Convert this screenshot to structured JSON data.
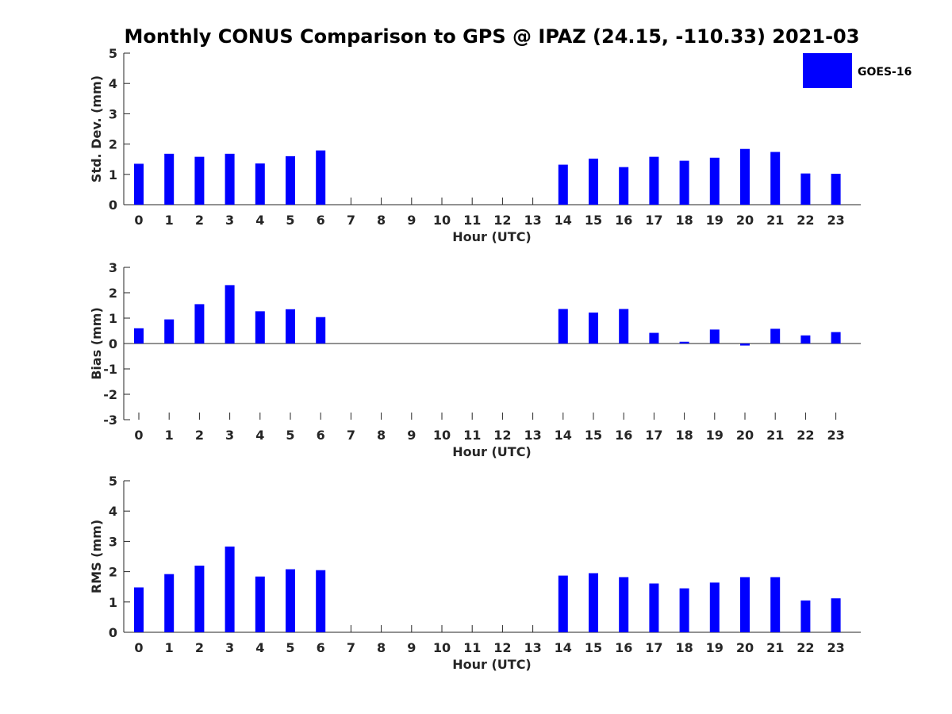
{
  "title": "Monthly CONUS Comparison to GPS @ IPAZ (24.15, -110.33) 2021-03",
  "legend": {
    "label": "GOES-16",
    "color": "#0000ff"
  },
  "bar_color": "#0000ff",
  "chart_data": [
    {
      "type": "bar",
      "xlabel": "Hour (UTC)",
      "ylabel": "Std. Dev. (mm)",
      "ylim": [
        0,
        5
      ],
      "yticks": [
        0,
        1,
        2,
        3,
        4,
        5
      ],
      "categories": [
        "0",
        "1",
        "2",
        "3",
        "4",
        "5",
        "6",
        "7",
        "8",
        "9",
        "10",
        "11",
        "12",
        "13",
        "14",
        "15",
        "16",
        "17",
        "18",
        "19",
        "20",
        "21",
        "22",
        "23"
      ],
      "series": [
        {
          "name": "GOES-16",
          "values": [
            1.35,
            1.68,
            1.58,
            1.68,
            1.36,
            1.6,
            1.79,
            null,
            null,
            null,
            null,
            null,
            null,
            null,
            1.32,
            1.52,
            1.24,
            1.58,
            1.45,
            1.55,
            1.84,
            1.74,
            1.03,
            1.02
          ]
        }
      ]
    },
    {
      "type": "bar",
      "xlabel": "Hour (UTC)",
      "ylabel": "Bias (mm)",
      "ylim": [
        -3,
        3
      ],
      "yticks": [
        -3,
        -2,
        -1,
        0,
        1,
        2,
        3
      ],
      "categories": [
        "0",
        "1",
        "2",
        "3",
        "4",
        "5",
        "6",
        "7",
        "8",
        "9",
        "10",
        "11",
        "12",
        "13",
        "14",
        "15",
        "16",
        "17",
        "18",
        "19",
        "20",
        "21",
        "22",
        "23"
      ],
      "series": [
        {
          "name": "GOES-16",
          "values": [
            0.6,
            0.95,
            1.55,
            2.3,
            1.27,
            1.35,
            1.04,
            null,
            null,
            null,
            null,
            null,
            null,
            null,
            1.36,
            1.22,
            1.36,
            0.42,
            0.07,
            0.55,
            -0.08,
            0.58,
            0.32,
            0.45
          ]
        }
      ]
    },
    {
      "type": "bar",
      "xlabel": "Hour (UTC)",
      "ylabel": "RMS (mm)",
      "ylim": [
        0,
        5
      ],
      "yticks": [
        0,
        1,
        2,
        3,
        4,
        5
      ],
      "categories": [
        "0",
        "1",
        "2",
        "3",
        "4",
        "5",
        "6",
        "7",
        "8",
        "9",
        "10",
        "11",
        "12",
        "13",
        "14",
        "15",
        "16",
        "17",
        "18",
        "19",
        "20",
        "21",
        "22",
        "23"
      ],
      "series": [
        {
          "name": "GOES-16",
          "values": [
            1.48,
            1.92,
            2.2,
            2.83,
            1.84,
            2.08,
            2.05,
            null,
            null,
            null,
            null,
            null,
            null,
            null,
            1.87,
            1.95,
            1.82,
            1.61,
            1.45,
            1.64,
            1.82,
            1.82,
            1.05,
            1.12
          ]
        }
      ]
    }
  ]
}
